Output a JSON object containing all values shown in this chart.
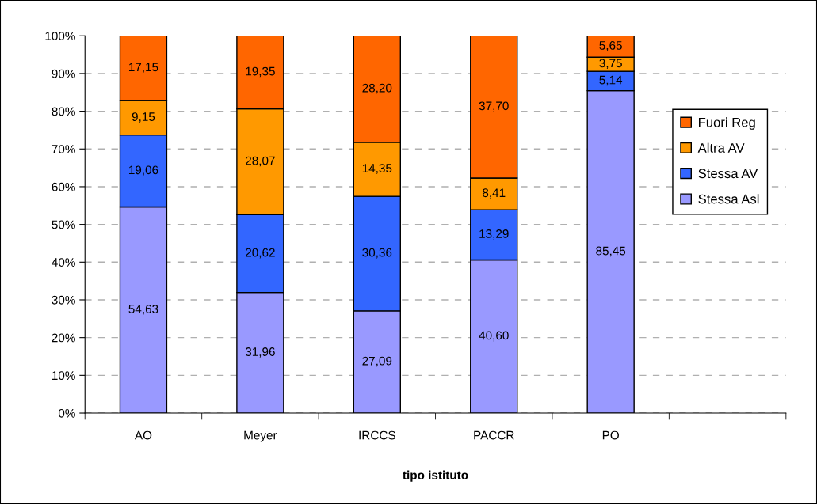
{
  "chart_data": {
    "type": "bar",
    "stacked": true,
    "xlabel": "tipo istituto",
    "categories": [
      "AO",
      "Meyer",
      "IRCCS",
      "PACCR",
      "PO",
      null
    ],
    "series": [
      {
        "name": "Stessa Asl",
        "color": "#9999ff",
        "values": [
          54.63,
          31.96,
          27.09,
          40.6,
          85.45,
          null
        ],
        "value_labels": [
          "54,63",
          "31,96",
          "27,09",
          "40,60",
          "85,45",
          null
        ]
      },
      {
        "name": "Stessa AV",
        "color": "#3366ff",
        "values": [
          19.06,
          20.62,
          30.36,
          13.29,
          5.14,
          null
        ],
        "value_labels": [
          "19,06",
          "20,62",
          "30,36",
          "13,29",
          "5,14",
          null
        ]
      },
      {
        "name": "Altra AV",
        "color": "#ff9900",
        "values": [
          9.15,
          28.07,
          14.35,
          8.41,
          3.75,
          null
        ],
        "value_labels": [
          "9,15",
          "28,07",
          "14,35",
          "8,41",
          "3,75",
          null
        ]
      },
      {
        "name": "Fuori Reg",
        "color": "#ff6600",
        "values": [
          17.15,
          19.35,
          28.2,
          37.7,
          5.65,
          null
        ],
        "value_labels": [
          "17,15",
          "19,35",
          "28,20",
          "37,70",
          "5,65",
          null
        ]
      }
    ],
    "ylim": [
      0,
      100
    ],
    "yticks": [
      {
        "value": 0,
        "label": "0%"
      },
      {
        "value": 10,
        "label": "10%"
      },
      {
        "value": 20,
        "label": "20%"
      },
      {
        "value": 30,
        "label": "30%"
      },
      {
        "value": 40,
        "label": "40%"
      },
      {
        "value": 50,
        "label": "50%"
      },
      {
        "value": 60,
        "label": "60%"
      },
      {
        "value": 70,
        "label": "70%"
      },
      {
        "value": 80,
        "label": "80%"
      },
      {
        "value": 90,
        "label": "90%"
      },
      {
        "value": 100,
        "label": "100%"
      }
    ],
    "grid": "y",
    "legend": "right"
  }
}
